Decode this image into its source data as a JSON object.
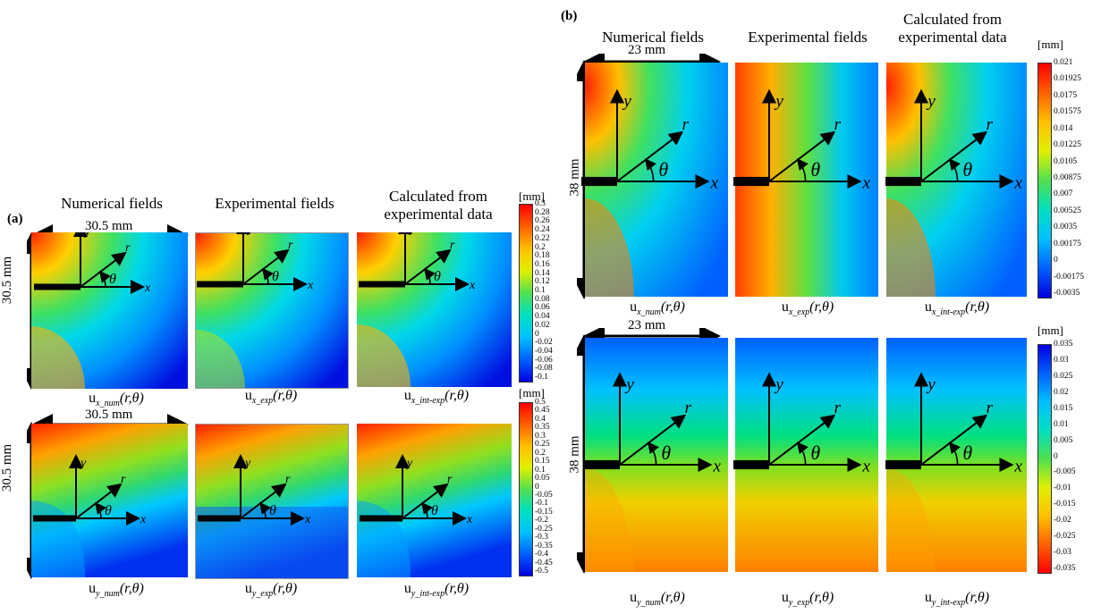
{
  "panel_a": {
    "letter": "(a)",
    "col_titles": [
      "Numerical fields",
      "Experimental fields",
      "Calculated from",
      "experimental data"
    ],
    "dim_h": "30.5 mm",
    "dim_v": "30.5 mm",
    "captions_row1": [
      "u",
      "x_num",
      "(r,θ)",
      "u",
      "x_exp",
      "(r,θ)",
      "u",
      "x_int-exp",
      "(r,θ)"
    ],
    "captions_row2": [
      "u",
      "y_num",
      "(r,θ)",
      "u",
      "y_exp",
      "(r,θ)",
      "u",
      "y_int-exp",
      "(r,θ)"
    ],
    "colorbar1": {
      "unit": "[mm]",
      "ticks": [
        "0.3",
        "0.28",
        "0.26",
        "0.24",
        "0.22",
        "0.2",
        "0.18",
        "0.16",
        "0.14",
        "0.12",
        "0.1",
        "0.08",
        "0.06",
        "0.04",
        "0.02",
        "0",
        "-0.02",
        "-0.04",
        "-0.06",
        "-0.08",
        "-0.1"
      ]
    },
    "colorbar2": {
      "unit": "[mm]",
      "ticks": [
        "0.5",
        "0.45",
        "0.4",
        "0.35",
        "0.3",
        "0.25",
        "0.2",
        "0.15",
        "0.1",
        "0.05",
        "0",
        "-0.05",
        "-0.1",
        "-0.15",
        "-0.2",
        "-0.25",
        "-0.3",
        "-0.35",
        "-0.4",
        "-0.45",
        "-0.5"
      ]
    }
  },
  "panel_b": {
    "letter": "(b)",
    "col_titles": [
      "Numerical fields",
      "Experimental fields",
      "Calculated from",
      "experimental data"
    ],
    "dim_h_top": "23 mm",
    "dim_v_top": "38 mm",
    "dim_h_bottom": "23 mm",
    "dim_v_bottom": "38 mm",
    "captions_row1": [
      "u",
      "x_num",
      "(r,θ)",
      "u",
      "x_exp",
      "(r,θ)",
      "u",
      "x_int-exp",
      "(r,θ)"
    ],
    "captions_row2": [
      "u",
      "y_num",
      "(r,θ)",
      "u",
      "y_exp",
      "(r,θ)",
      "u",
      "y_int-exp",
      "(r,θ)"
    ],
    "colorbar1": {
      "unit": "[mm]",
      "ticks": [
        "0.021",
        "0.01925",
        "0.0175",
        "0.01575",
        "0.014",
        "0.01225",
        "0.0105",
        "0.00875",
        "0.007",
        "0.00525",
        "0.0035",
        "0.00175",
        "0",
        "-0.00175",
        "-0.0035"
      ]
    },
    "colorbar2": {
      "unit": "[mm]",
      "ticks": [
        "0.035",
        "0.03",
        "0.025",
        "0.02",
        "0.015",
        "0.01",
        "0.005",
        "0",
        "-0.005",
        "-0.01",
        "-0.015",
        "-0.02",
        "-0.025",
        "-0.03",
        "-0.035"
      ]
    }
  },
  "axis_labels": {
    "x": "x",
    "y": "y",
    "r": "r",
    "theta": "θ"
  }
}
